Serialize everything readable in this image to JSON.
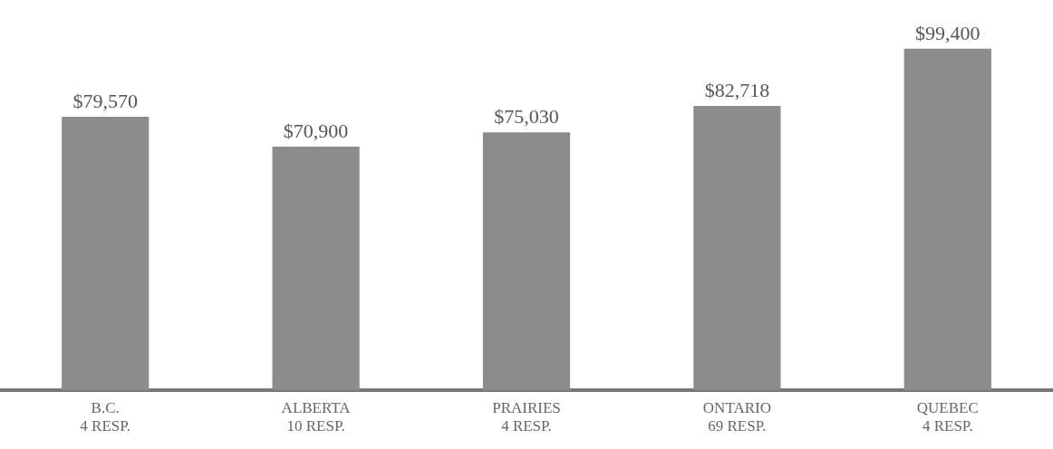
{
  "chart_data": {
    "type": "bar",
    "categories": [
      "B.C.\n4 RESP.",
      "ALBERTA\n10 RESP.",
      "PRAIRIES\n4 RESP.",
      "ONTARIO\n69 RESP.",
      "QUEBEC\n4 RESP."
    ],
    "values": [
      79570,
      70900,
      75030,
      82718,
      99400
    ],
    "value_labels": [
      "$79,570",
      "$70,900",
      "$75,030",
      "$82,718",
      "$99,400"
    ],
    "color": "#8c8c8c",
    "grid": false,
    "legend": false
  }
}
